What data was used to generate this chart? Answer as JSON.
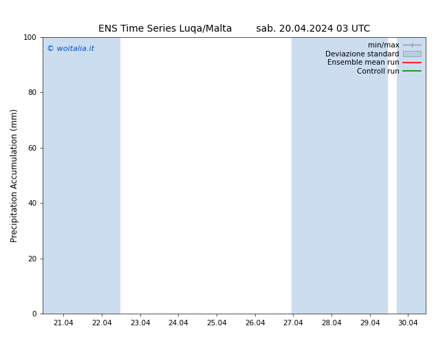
{
  "title_left": "ENS Time Series Luqa/Malta",
  "title_right": "sab. 20.04.2024 03 UTC",
  "ylabel": "Precipitation Accumulation (mm)",
  "watermark": "© woitalia.it",
  "watermark_color": "#0055cc",
  "ylim": [
    0,
    100
  ],
  "xlim_start": 20.5,
  "xlim_end": 30.5,
  "x_ticks": [
    21.04,
    22.04,
    23.04,
    24.04,
    25.04,
    26.04,
    27.04,
    28.04,
    29.04,
    30.04
  ],
  "x_tick_labels": [
    "21.04",
    "22.04",
    "23.04",
    "24.04",
    "25.04",
    "26.04",
    "27.04",
    "28.04",
    "29.04",
    "30.04"
  ],
  "shaded_bands": [
    {
      "x_start": 20.5,
      "x_end": 22.5
    },
    {
      "x_start": 27.0,
      "x_end": 29.5
    },
    {
      "x_start": 29.75,
      "x_end": 30.5
    }
  ],
  "shade_color": "#ccddf0",
  "background_color": "#ffffff",
  "legend_items": [
    {
      "label": "min/max",
      "color": "#999999",
      "type": "errorbar"
    },
    {
      "label": "Deviazione standard",
      "color": "#bbccdd",
      "type": "band"
    },
    {
      "label": "Ensemble mean run",
      "color": "#ff0000",
      "type": "line"
    },
    {
      "label": "Controll run",
      "color": "#008800",
      "type": "line"
    }
  ],
  "title_fontsize": 10,
  "tick_fontsize": 7.5,
  "ylabel_fontsize": 8.5,
  "watermark_fontsize": 8,
  "legend_fontsize": 7.5
}
